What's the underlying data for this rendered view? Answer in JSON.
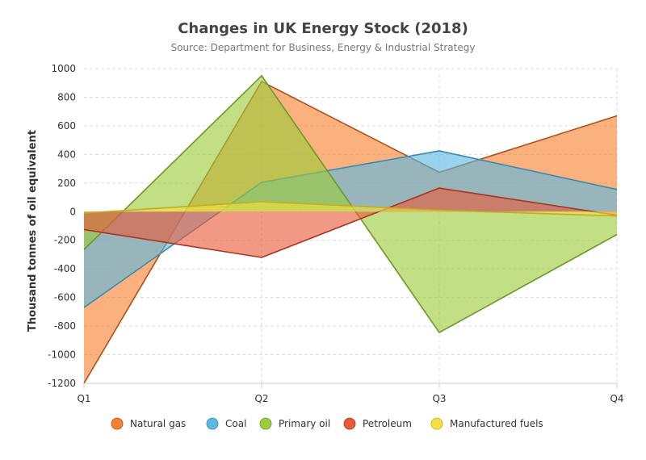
{
  "chart_data": {
    "type": "area",
    "title": "Changes in UK Energy Stock (2018)",
    "subtitle": "Source: Department for Business, Energy & Industrial Strategy",
    "xlabel": "",
    "ylabel": "Thousand tonnes of oil equivalent",
    "categories": [
      "Q1",
      "Q2",
      "Q3",
      "Q4"
    ],
    "ylim": [
      -1200,
      1000
    ],
    "yticks": [
      -1200,
      -1000,
      -800,
      -600,
      -400,
      -200,
      0,
      200,
      400,
      600,
      800,
      1000
    ],
    "grid": true,
    "legend_position": "bottom",
    "series": [
      {
        "name": "Natural gas",
        "color": "#f7812d",
        "line_color": "#b05019",
        "values": [
          -1200,
          910,
          275,
          670
        ]
      },
      {
        "name": "Coal",
        "color": "#5bb8e0",
        "line_color": "#3a8ab0",
        "values": [
          -670,
          205,
          425,
          155
        ]
      },
      {
        "name": "Primary oil",
        "color": "#9ccc3a",
        "line_color": "#6a9a26",
        "values": [
          -265,
          950,
          -845,
          -160
        ]
      },
      {
        "name": "Petroleum",
        "color": "#e85a3a",
        "line_color": "#a8361f",
        "values": [
          -125,
          -320,
          165,
          -25
        ]
      },
      {
        "name": "Manufactured fuels",
        "color": "#f6e040",
        "line_color": "#c4ac1c",
        "values": [
          -10,
          70,
          10,
          -30
        ]
      }
    ]
  }
}
